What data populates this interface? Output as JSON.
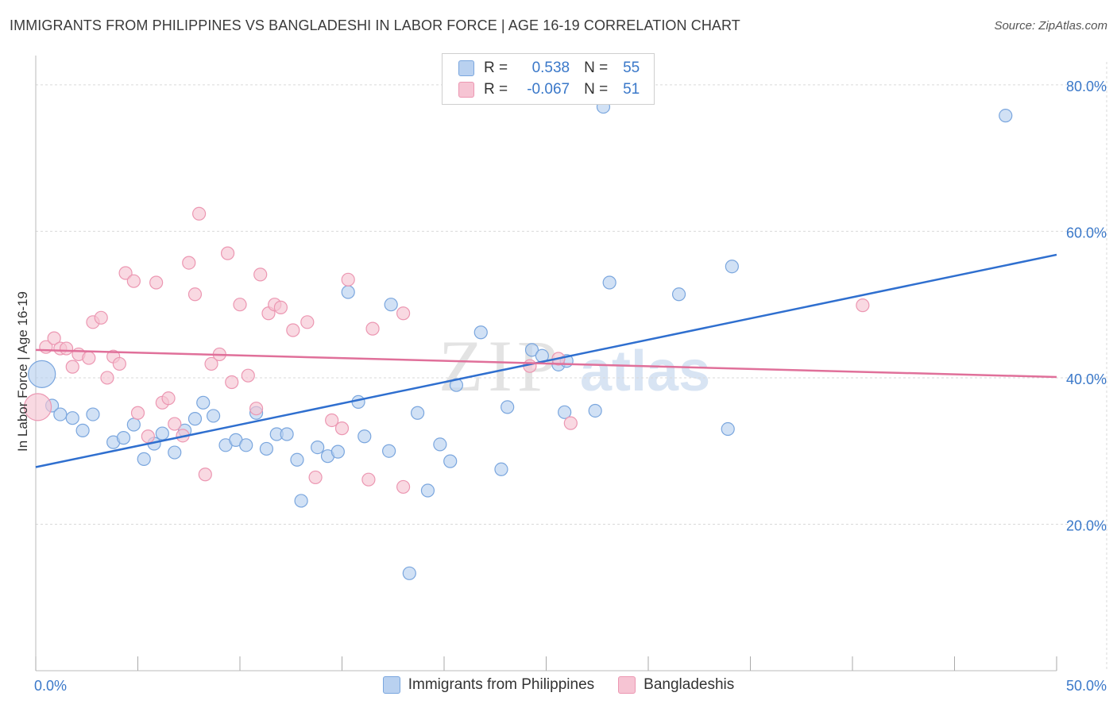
{
  "title": "IMMIGRANTS FROM PHILIPPINES VS BANGLADESHI IN LABOR FORCE | AGE 16-19 CORRELATION CHART",
  "source": "Source: ZipAtlas.com",
  "watermark": {
    "zip": "ZIP",
    "atlas": "atlas"
  },
  "colors": {
    "blue_fill": "#b9d1f0",
    "blue_stroke": "#7aa6de",
    "blue_line": "#2f6fcf",
    "pink_fill": "#f6c4d3",
    "pink_stroke": "#ec97b2",
    "pink_line": "#e0709a",
    "axis_text": "#3a78c9",
    "grid": "#d9d9d9"
  },
  "legend": {
    "rows": [
      {
        "r_label": "R =",
        "r_value": "0.538",
        "n_label": "N =",
        "n_value": "55"
      },
      {
        "r_label": "R =",
        "r_value": "-0.067",
        "n_label": "N =",
        "n_value": "51"
      }
    ]
  },
  "bottom_legend": [
    "Immigrants from Philippines",
    "Bangladeshis"
  ],
  "chart_data": {
    "type": "scatter",
    "xlabel": "",
    "ylabel": "In Labor Force | Age 16-19",
    "xlim": [
      0,
      50
    ],
    "ylim": [
      0,
      84
    ],
    "x_tick_labels": [
      {
        "value": 0,
        "label": "0.0%"
      },
      {
        "value": 50,
        "label": "50.0%"
      }
    ],
    "y_tick_labels": [
      {
        "value": 20,
        "label": "20.0%"
      },
      {
        "value": 40,
        "label": "40.0%"
      },
      {
        "value": 60,
        "label": "60.0%"
      },
      {
        "value": 80,
        "label": "80.0%"
      }
    ],
    "grid": "horizontal dashed",
    "series": [
      {
        "name": "Immigrants from Philippines",
        "color": "#7aa6de",
        "trend": {
          "x": [
            0,
            50
          ],
          "y": [
            27.8,
            56.8
          ]
        },
        "points": [
          {
            "x": 0.3,
            "y": 40.5,
            "big": true
          },
          {
            "x": 0.8,
            "y": 36.2
          },
          {
            "x": 1.2,
            "y": 35.0
          },
          {
            "x": 1.8,
            "y": 34.5
          },
          {
            "x": 2.3,
            "y": 32.8
          },
          {
            "x": 2.8,
            "y": 35.0
          },
          {
            "x": 3.8,
            "y": 31.2
          },
          {
            "x": 4.3,
            "y": 31.8
          },
          {
            "x": 4.8,
            "y": 33.6
          },
          {
            "x": 5.3,
            "y": 28.9
          },
          {
            "x": 5.8,
            "y": 31.0
          },
          {
            "x": 6.2,
            "y": 32.4
          },
          {
            "x": 6.8,
            "y": 29.8
          },
          {
            "x": 7.3,
            "y": 32.8
          },
          {
            "x": 7.8,
            "y": 34.4
          },
          {
            "x": 8.2,
            "y": 36.6
          },
          {
            "x": 8.7,
            "y": 34.8
          },
          {
            "x": 9.3,
            "y": 30.8
          },
          {
            "x": 9.8,
            "y": 31.5
          },
          {
            "x": 10.3,
            "y": 30.8
          },
          {
            "x": 10.8,
            "y": 35.2
          },
          {
            "x": 11.3,
            "y": 30.3
          },
          {
            "x": 11.8,
            "y": 32.3
          },
          {
            "x": 12.3,
            "y": 32.3
          },
          {
            "x": 12.8,
            "y": 28.8
          },
          {
            "x": 13.0,
            "y": 23.2
          },
          {
            "x": 13.8,
            "y": 30.5
          },
          {
            "x": 14.3,
            "y": 29.3
          },
          {
            "x": 14.8,
            "y": 29.9
          },
          {
            "x": 15.3,
            "y": 51.7
          },
          {
            "x": 15.8,
            "y": 36.7
          },
          {
            "x": 16.1,
            "y": 32.0
          },
          {
            "x": 17.3,
            "y": 30.0
          },
          {
            "x": 17.4,
            "y": 50.0
          },
          {
            "x": 18.7,
            "y": 35.2
          },
          {
            "x": 18.3,
            "y": 13.3
          },
          {
            "x": 19.2,
            "y": 24.6
          },
          {
            "x": 19.8,
            "y": 30.9
          },
          {
            "x": 20.3,
            "y": 28.6
          },
          {
            "x": 20.6,
            "y": 39.0
          },
          {
            "x": 21.8,
            "y": 46.2
          },
          {
            "x": 22.8,
            "y": 27.5
          },
          {
            "x": 23.1,
            "y": 36.0
          },
          {
            "x": 24.3,
            "y": 43.8
          },
          {
            "x": 24.8,
            "y": 43.0
          },
          {
            "x": 25.6,
            "y": 41.8
          },
          {
            "x": 25.9,
            "y": 35.3
          },
          {
            "x": 27.4,
            "y": 35.5
          },
          {
            "x": 27.8,
            "y": 77.0
          },
          {
            "x": 28.1,
            "y": 53.0
          },
          {
            "x": 31.5,
            "y": 51.4
          },
          {
            "x": 33.9,
            "y": 33.0
          },
          {
            "x": 34.1,
            "y": 55.2
          },
          {
            "x": 47.5,
            "y": 75.8
          },
          {
            "x": 26.0,
            "y": 42.3
          }
        ]
      },
      {
        "name": "Bangladeshis",
        "color": "#ec97b2",
        "trend": {
          "x": [
            0,
            50
          ],
          "y": [
            43.8,
            40.1
          ]
        },
        "points": [
          {
            "x": 0.1,
            "y": 36.0,
            "big": true
          },
          {
            "x": 0.5,
            "y": 44.2
          },
          {
            "x": 0.9,
            "y": 45.4
          },
          {
            "x": 1.2,
            "y": 44.0
          },
          {
            "x": 1.5,
            "y": 44.0
          },
          {
            "x": 1.8,
            "y": 41.5
          },
          {
            "x": 2.1,
            "y": 43.2
          },
          {
            "x": 2.6,
            "y": 42.7
          },
          {
            "x": 2.8,
            "y": 47.6
          },
          {
            "x": 3.2,
            "y": 48.2
          },
          {
            "x": 3.5,
            "y": 40.0
          },
          {
            "x": 3.8,
            "y": 42.9
          },
          {
            "x": 4.1,
            "y": 41.9
          },
          {
            "x": 4.4,
            "y": 54.3
          },
          {
            "x": 4.8,
            "y": 53.2
          },
          {
            "x": 5.0,
            "y": 35.2
          },
          {
            "x": 5.5,
            "y": 32.0
          },
          {
            "x": 5.9,
            "y": 53.0
          },
          {
            "x": 6.2,
            "y": 36.6
          },
          {
            "x": 6.5,
            "y": 37.2
          },
          {
            "x": 6.8,
            "y": 33.7
          },
          {
            "x": 7.2,
            "y": 32.1
          },
          {
            "x": 7.5,
            "y": 55.7
          },
          {
            "x": 7.8,
            "y": 51.4
          },
          {
            "x": 8.0,
            "y": 62.4
          },
          {
            "x": 8.3,
            "y": 26.8
          },
          {
            "x": 8.6,
            "y": 41.9
          },
          {
            "x": 9.0,
            "y": 43.2
          },
          {
            "x": 9.4,
            "y": 57.0
          },
          {
            "x": 9.6,
            "y": 39.4
          },
          {
            "x": 10.0,
            "y": 50.0
          },
          {
            "x": 10.4,
            "y": 40.3
          },
          {
            "x": 10.8,
            "y": 35.8
          },
          {
            "x": 11.0,
            "y": 54.1
          },
          {
            "x": 11.4,
            "y": 48.8
          },
          {
            "x": 11.7,
            "y": 50.0
          },
          {
            "x": 12.0,
            "y": 49.6
          },
          {
            "x": 12.6,
            "y": 46.5
          },
          {
            "x": 13.3,
            "y": 47.6
          },
          {
            "x": 13.7,
            "y": 26.4
          },
          {
            "x": 14.5,
            "y": 34.2
          },
          {
            "x": 15.0,
            "y": 33.1
          },
          {
            "x": 15.3,
            "y": 53.4
          },
          {
            "x": 16.3,
            "y": 26.1
          },
          {
            "x": 16.5,
            "y": 46.7
          },
          {
            "x": 18.0,
            "y": 48.8
          },
          {
            "x": 18.0,
            "y": 25.1
          },
          {
            "x": 24.2,
            "y": 41.6
          },
          {
            "x": 25.6,
            "y": 42.6
          },
          {
            "x": 26.2,
            "y": 33.8
          },
          {
            "x": 40.5,
            "y": 49.9
          }
        ]
      }
    ]
  }
}
